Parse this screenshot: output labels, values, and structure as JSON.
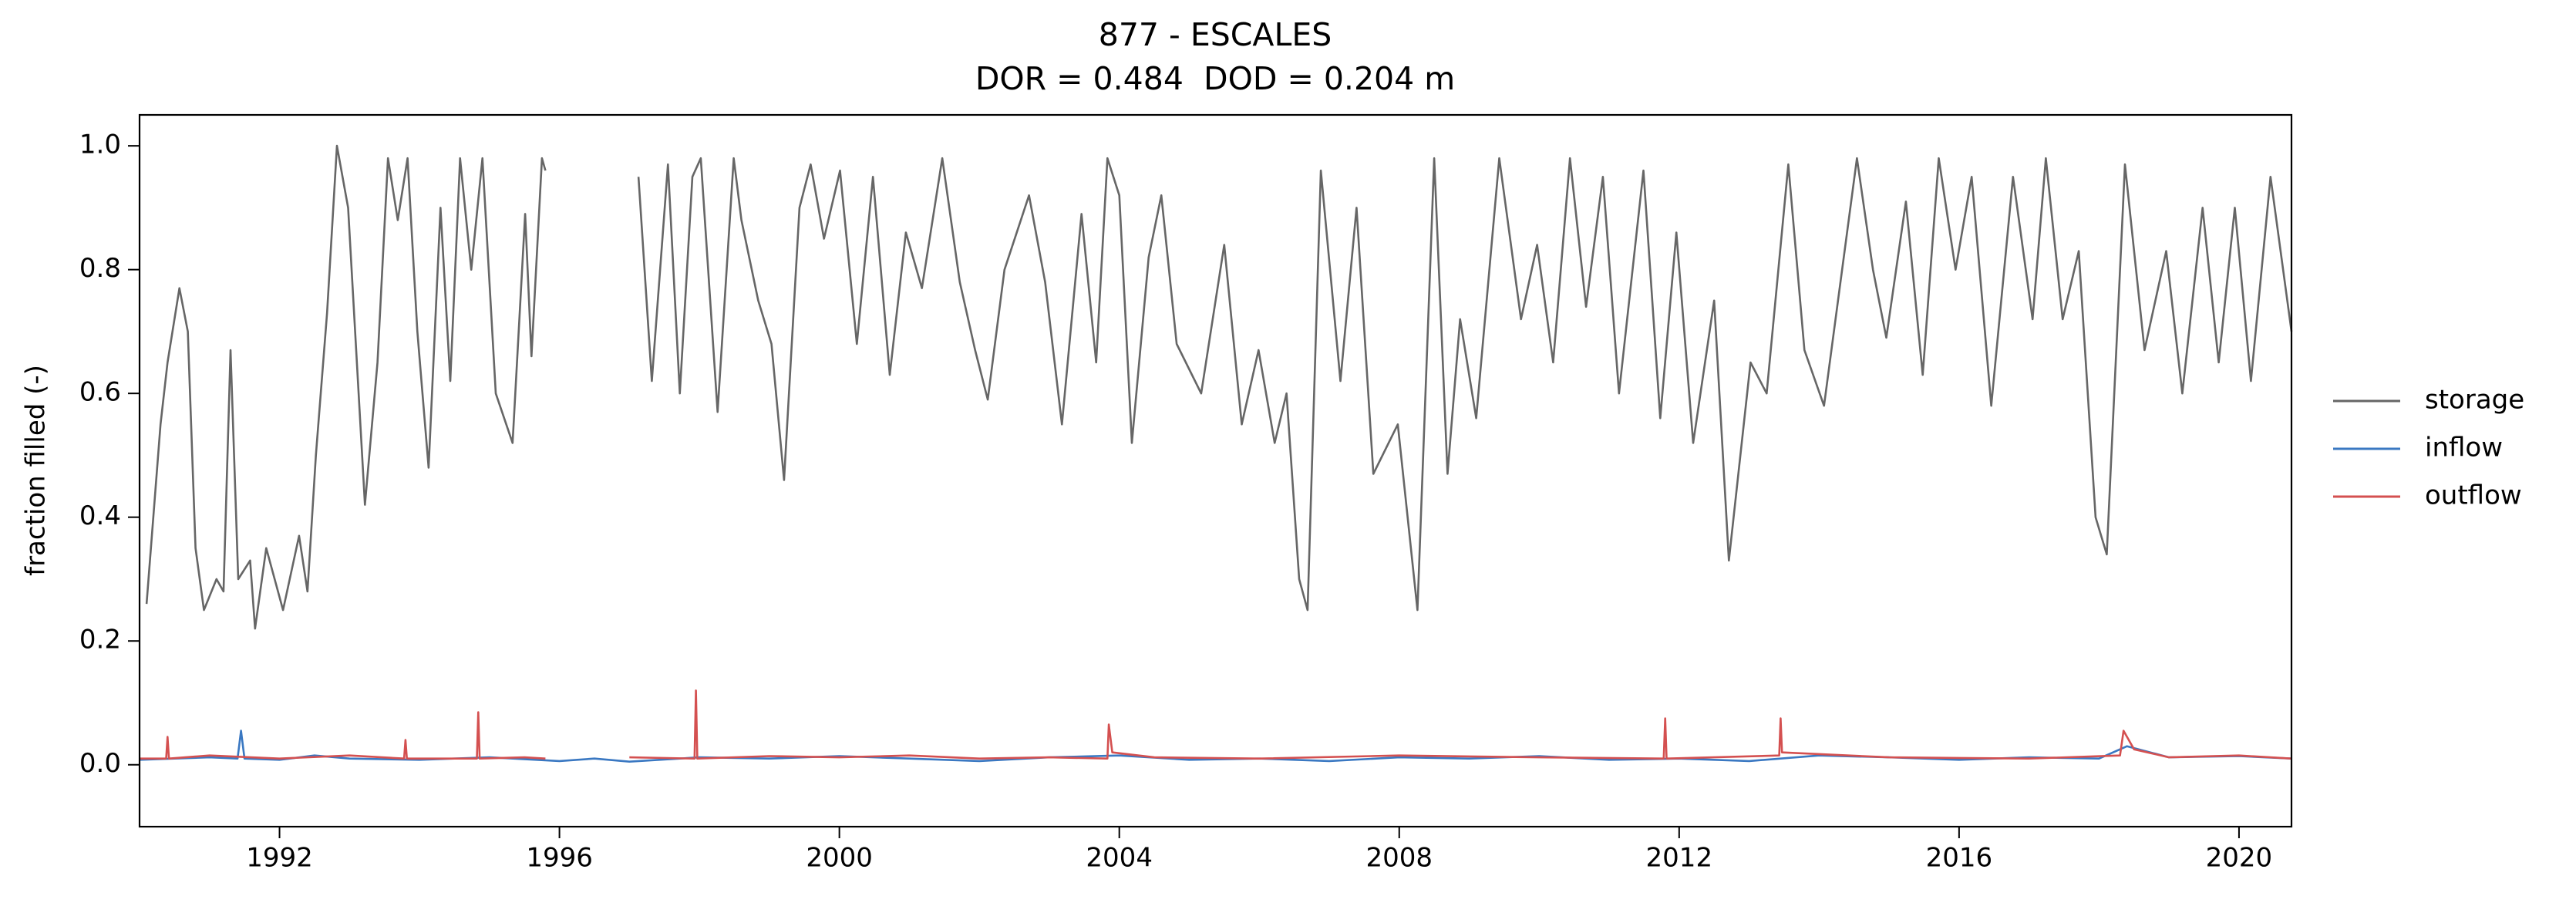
{
  "chart_data": {
    "type": "line",
    "title": "877 - ESCALES",
    "subtitle": "DOR = 0.484  DOD = 0.204 m",
    "y_label": "fraction filled (-)",
    "xlim": [
      1990.0,
      2020.75
    ],
    "ylim": [
      -0.1,
      1.05
    ],
    "xticks": [
      1992,
      1996,
      2000,
      2004,
      2008,
      2012,
      2016,
      2020
    ],
    "yticks": [
      {
        "value": 0,
        "label": "0.0"
      },
      0.2,
      0.4,
      0.6,
      0.8,
      {
        "value": 1,
        "label": "1.0"
      }
    ],
    "series": [
      {
        "name": "storage",
        "color": "#666666",
        "x": [
          1990.1,
          1990.3,
          1990.4,
          1990.57,
          1990.69,
          1990.8,
          1990.92,
          1991.1,
          1991.2,
          1991.3,
          1991.41,
          1991.58,
          1991.65,
          1991.81,
          1992.05,
          1992.28,
          1992.4,
          1992.52,
          1992.68,
          1992.82,
          1992.98,
          1993.22,
          1993.4,
          1993.55,
          1993.69,
          1993.83,
          1993.97,
          1994.13,
          1994.3,
          1994.44,
          1994.58,
          1994.74,
          1994.9,
          1995.09,
          1995.33,
          1995.51,
          1995.6,
          1995.75,
          1995.8,
          1996.5,
          1997.13,
          1997.32,
          1997.55,
          1997.72,
          1997.9,
          1998.02,
          1998.26,
          1998.49,
          1998.6,
          1998.84,
          1999.03,
          1999.21,
          1999.43,
          1999.59,
          1999.78,
          2000.01,
          2000.25,
          2000.48,
          2000.72,
          2000.95,
          2001.18,
          2001.47,
          2001.72,
          2001.94,
          2002.12,
          2002.36,
          2002.71,
          2002.94,
          2003.18,
          2003.46,
          2003.67,
          2003.83,
          2004.0,
          2004.18,
          2004.42,
          2004.6,
          2004.82,
          2005.17,
          2005.5,
          2005.75,
          2005.99,
          2006.22,
          2006.39,
          2006.57,
          2006.69,
          2006.88,
          2007.16,
          2007.39,
          2007.63,
          2007.98,
          2008.26,
          2008.5,
          2008.69,
          2008.87,
          2009.1,
          2009.43,
          2009.74,
          2009.97,
          2010.2,
          2010.44,
          2010.67,
          2010.91,
          2011.14,
          2011.49,
          2011.73,
          2011.96,
          2012.2,
          2012.5,
          2012.71,
          2013.02,
          2013.25,
          2013.56,
          2013.79,
          2014.07,
          2014.54,
          2014.77,
          2014.96,
          2015.24,
          2015.48,
          2015.71,
          2015.95,
          2016.18,
          2016.46,
          2016.77,
          2017.05,
          2017.24,
          2017.48,
          2017.71,
          2017.95,
          2018.11,
          2018.37,
          2018.65,
          2018.96,
          2019.19,
          2019.48,
          2019.71,
          2019.94,
          2020.17,
          2020.45,
          2020.75
        ],
        "values": [
          0.26,
          0.55,
          0.65,
          0.77,
          0.7,
          0.35,
          0.25,
          0.3,
          0.28,
          0.67,
          0.3,
          0.33,
          0.22,
          0.35,
          0.25,
          0.37,
          0.28,
          0.5,
          0.73,
          1.0,
          0.9,
          0.42,
          0.65,
          0.98,
          0.88,
          0.98,
          0.7,
          0.48,
          0.9,
          0.62,
          0.98,
          0.8,
          0.98,
          0.6,
          0.52,
          0.89,
          0.66,
          0.98,
          0.96,
          null,
          0.95,
          0.62,
          0.97,
          0.6,
          0.95,
          0.98,
          0.57,
          0.98,
          0.88,
          0.75,
          0.68,
          0.46,
          0.9,
          0.97,
          0.85,
          0.96,
          0.68,
          0.95,
          0.63,
          0.86,
          0.77,
          0.98,
          0.78,
          0.67,
          0.59,
          0.8,
          0.92,
          0.78,
          0.55,
          0.89,
          0.65,
          0.98,
          0.92,
          0.52,
          0.82,
          0.92,
          0.68,
          0.6,
          0.84,
          0.55,
          0.67,
          0.52,
          0.6,
          0.3,
          0.25,
          0.96,
          0.62,
          0.9,
          0.47,
          0.55,
          0.25,
          0.98,
          0.47,
          0.72,
          0.56,
          0.98,
          0.72,
          0.84,
          0.65,
          0.98,
          0.74,
          0.95,
          0.6,
          0.96,
          0.56,
          0.86,
          0.52,
          0.75,
          0.33,
          0.65,
          0.6,
          0.97,
          0.67,
          0.58,
          0.98,
          0.8,
          0.69,
          0.91,
          0.63,
          0.98,
          0.8,
          0.95,
          0.58,
          0.95,
          0.72,
          0.98,
          0.72,
          0.83,
          0.4,
          0.34,
          0.97,
          0.67,
          0.83,
          0.6,
          0.9,
          0.65,
          0.9,
          0.62,
          0.95,
          0.7
        ]
      },
      {
        "name": "inflow",
        "color": "#3a78c2",
        "x": [
          1990.0,
          1990.5,
          1991.0,
          1991.4,
          1991.45,
          1991.5,
          1992.0,
          1992.5,
          1993.0,
          1994.0,
          1995.0,
          1996.0,
          1996.5,
          1997.0,
          1998.0,
          1999.0,
          2000.0,
          2001.0,
          2002.0,
          2003.0,
          2004.0,
          2005.0,
          2006.0,
          2007.0,
          2008.0,
          2009.0,
          2010.0,
          2011.0,
          2012.0,
          2013.0,
          2014.0,
          2015.0,
          2016.0,
          2017.0,
          2018.0,
          2018.4,
          2019.0,
          2020.0,
          2020.75
        ],
        "values": [
          0.008,
          0.01,
          0.012,
          0.01,
          0.055,
          0.01,
          0.008,
          0.015,
          0.01,
          0.008,
          0.012,
          0.006,
          0.01,
          0.005,
          0.012,
          0.01,
          0.014,
          0.01,
          0.006,
          0.012,
          0.015,
          0.008,
          0.01,
          0.006,
          0.012,
          0.01,
          0.014,
          0.008,
          0.01,
          0.006,
          0.015,
          0.012,
          0.008,
          0.012,
          0.01,
          0.03,
          0.012,
          0.014,
          0.01
        ]
      },
      {
        "name": "outflow",
        "color": "#d45050",
        "x": [
          1990.0,
          1990.38,
          1990.4,
          1990.42,
          1991.0,
          1992.0,
          1993.0,
          1993.78,
          1993.8,
          1993.82,
          1994.82,
          1994.84,
          1994.86,
          1995.5,
          1995.8,
          1996.5,
          1997.0,
          1997.93,
          1997.95,
          1997.97,
          1999.0,
          2000.0,
          2001.0,
          2002.0,
          2003.0,
          2003.83,
          2003.85,
          2003.9,
          2004.5,
          2006.0,
          2008.0,
          2010.0,
          2011.78,
          2011.8,
          2011.82,
          2013.43,
          2013.45,
          2013.47,
          2015.0,
          2017.0,
          2018.3,
          2018.35,
          2018.5,
          2019.0,
          2020.0,
          2020.75
        ],
        "values": [
          0.01,
          0.01,
          0.045,
          0.01,
          0.015,
          0.01,
          0.015,
          0.01,
          0.04,
          0.01,
          0.01,
          0.085,
          0.01,
          0.012,
          0.01,
          null,
          0.012,
          0.01,
          0.12,
          0.01,
          0.014,
          0.012,
          0.015,
          0.01,
          0.012,
          0.01,
          0.065,
          0.02,
          0.012,
          0.01,
          0.015,
          0.012,
          0.01,
          0.075,
          0.01,
          0.015,
          0.075,
          0.02,
          0.012,
          0.01,
          0.015,
          0.055,
          0.025,
          0.012,
          0.015,
          0.01
        ]
      }
    ]
  }
}
